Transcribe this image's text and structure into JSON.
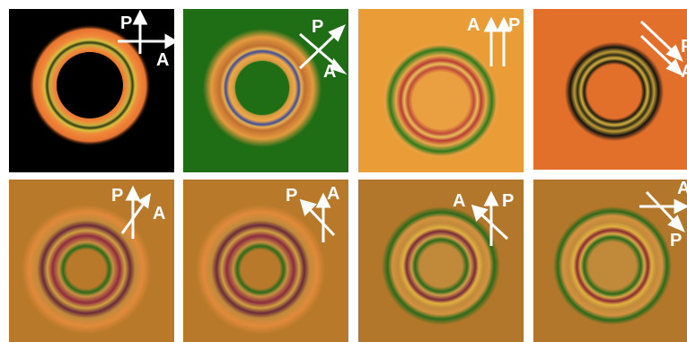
{
  "figure": {
    "background_color": "#ffffff",
    "panels": [
      {
        "id": "a",
        "row": 1,
        "col": 1,
        "background": "#000000",
        "polarizer_label": "P",
        "analyzer_label": "A",
        "arrow_icon": "crossed-arrows-icon"
      },
      {
        "id": "b",
        "row": 1,
        "col": 2,
        "background": "#1f6e16",
        "polarizer_label": "P",
        "analyzer_label": "A",
        "arrow_icon": "crossed-arrows-icon"
      },
      {
        "id": "c",
        "row": 1,
        "col": 3,
        "background": "#ea9d36",
        "polarizer_label": "P",
        "analyzer_label": "A",
        "arrow_icon": "parallel-arrows-icon"
      },
      {
        "id": "d",
        "row": 1,
        "col": 4,
        "background": "#e26f2a",
        "polarizer_label": "P",
        "analyzer_label": "A",
        "arrow_icon": "parallel-arrows-icon"
      },
      {
        "id": "e",
        "row": 2,
        "col": 1,
        "background": "#b87a2a",
        "polarizer_label": "P",
        "analyzer_label": "A",
        "arrow_icon": "angled-arrows-icon"
      },
      {
        "id": "f",
        "row": 2,
        "col": 2,
        "background": "#b87a2a",
        "polarizer_label": "P",
        "analyzer_label": "A",
        "arrow_icon": "angled-arrows-icon"
      },
      {
        "id": "g",
        "row": 2,
        "col": 3,
        "background": "#b2772a",
        "polarizer_label": "P",
        "analyzer_label": "A",
        "arrow_icon": "angled-arrows-icon"
      },
      {
        "id": "h",
        "row": 2,
        "col": 4,
        "background": "#b2772a",
        "polarizer_label": "P",
        "analyzer_label": "A",
        "arrow_icon": "angled-arrows-icon"
      }
    ]
  }
}
